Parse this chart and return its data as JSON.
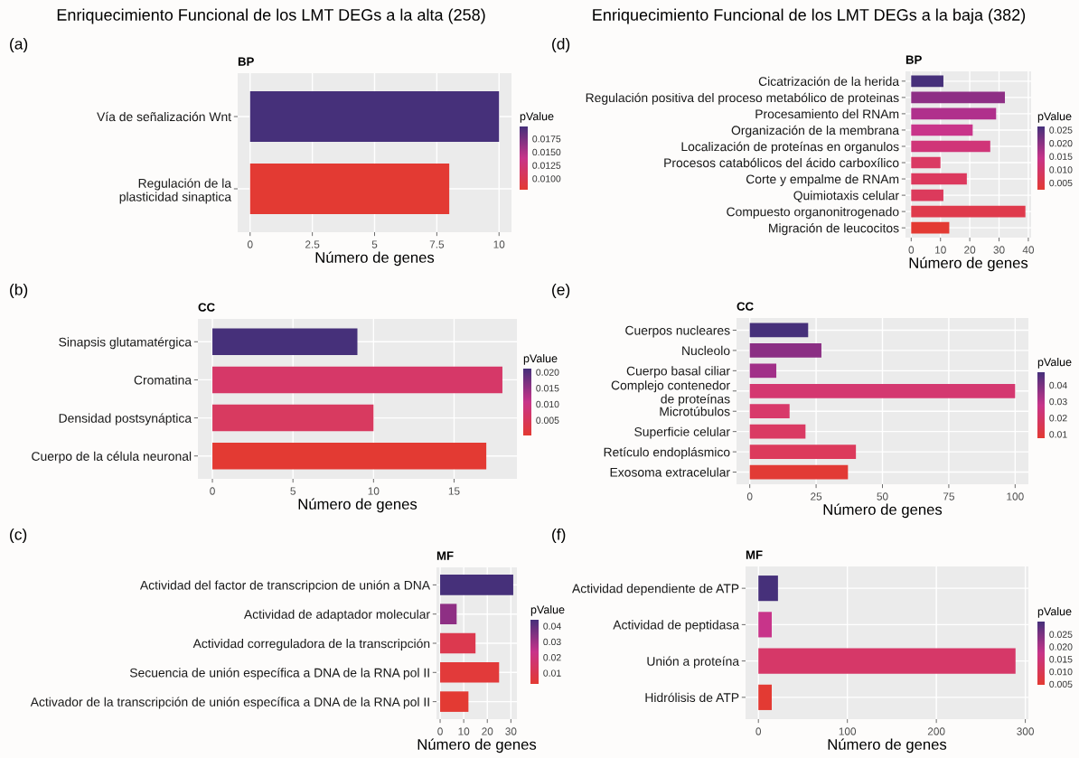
{
  "chart_data": [
    {
      "type": "bar",
      "orientation": "horizontal",
      "title": "BP",
      "annotations": [
        "Enriquecimiento Funcional de los LMT DEGs a la alta (258)",
        "(a)"
      ],
      "xlabel": "Número de genes",
      "categories": [
        "Vía de señalización Wnt",
        "Regulación de la\nplasticidad sinaptica"
      ],
      "values": [
        10,
        8
      ],
      "colors": [
        "#46307a",
        "#e33a33"
      ],
      "xlim": [
        -0.5,
        10.5
      ],
      "xticks": [
        0,
        2.5,
        5,
        7.5,
        10
      ],
      "grid": true,
      "clabel": "pValue",
      "clim": [
        0.0079,
        0.0198
      ],
      "cticks": [
        0.0175,
        {
          "value": 0.015,
          "label": "0.0150"
        },
        0.0125,
        {
          "value": 0.01,
          "label": "0.0100"
        }
      ]
    },
    {
      "type": "bar",
      "orientation": "horizontal",
      "title": "BP",
      "annotations": [
        "Enriquecimiento Funcional de los LMT DEGs a la baja (382)",
        "(d)"
      ],
      "xlabel": "Número de genes",
      "categories": [
        "Cicatrización de la herida",
        "Regulación positiva del proceso metabólico de proteinas",
        "Procesamiento del RNAm",
        "Organización de la membrana",
        "Localización de proteínas en organulos",
        "Procesos catabólicos del ácido carboxílico",
        "Corte y empalme de RNAm",
        "Quimiotaxis celular",
        "Compuesto organonitrogenado",
        "Migración de leucocitos"
      ],
      "values": [
        11,
        32,
        29,
        21,
        27,
        10,
        19,
        11,
        39,
        13
      ],
      "colors": [
        "#46307a",
        "#8e2f85",
        "#b0308c",
        "#c9348a",
        "#d03578",
        "#da3a63",
        "#dc395e",
        "#dc3a5c",
        "#df3a4c",
        "#e33a33"
      ],
      "xlim": [
        -1.95,
        40.95
      ],
      "xticks": [
        0,
        10,
        20,
        30,
        40
      ],
      "grid": true,
      "clabel": "pValue",
      "clim": [
        0.0024,
        0.0263
      ],
      "cticks": [
        0.025,
        {
          "value": 0.02,
          "label": "0.020"
        },
        0.015,
        {
          "value": 0.01,
          "label": "0.010"
        },
        0.005
      ]
    },
    {
      "type": "bar",
      "orientation": "horizontal",
      "title": "CC",
      "annotations": [
        "(b)"
      ],
      "xlabel": "Número de genes",
      "categories": [
        "Sinapsis glutamatérgica",
        "Cromatina",
        "Densidad postsynáptica",
        "Cuerpo de la célula neuronal"
      ],
      "values": [
        9,
        18,
        10,
        17
      ],
      "colors": [
        "#46307a",
        "#d63868",
        "#d83a60",
        "#e33a33"
      ],
      "xlim": [
        -0.9,
        18.9
      ],
      "xticks": [
        0,
        5,
        10,
        15
      ],
      "grid": true,
      "clabel": "pValue",
      "clim": [
        0.0002,
        0.0211
      ],
      "cticks": [
        {
          "value": 0.02,
          "label": "0.020"
        },
        0.015,
        {
          "value": 0.01,
          "label": "0.010"
        },
        0.005
      ]
    },
    {
      "type": "bar",
      "orientation": "horizontal",
      "title": "CC",
      "annotations": [
        "(e)"
      ],
      "xlabel": "Número de genes",
      "categories": [
        "Cuerpos nucleares",
        "Nucleolo",
        "Cuerpo basal ciliar",
        "Complejo contenedor\nde proteínas",
        "Microtúbulos",
        "Superficie celular",
        "Retículo endoplásmico",
        "Exosoma extracelular"
      ],
      "values": [
        22,
        27,
        10,
        100,
        15,
        21,
        40,
        37
      ],
      "colors": [
        "#46307a",
        "#8b2f84",
        "#a13088",
        "#d43870",
        "#d8396a",
        "#da3a63",
        "#dc3a5c",
        "#e23a36"
      ],
      "xlim": [
        -5,
        105
      ],
      "xticks": [
        0,
        25,
        50,
        75,
        100
      ],
      "grid": true,
      "clabel": "pValue",
      "clim": [
        0.0076,
        0.0479
      ],
      "cticks": [
        0.04,
        0.03,
        0.02,
        0.01
      ]
    },
    {
      "type": "bar",
      "orientation": "horizontal",
      "title": "MF",
      "annotations": [
        "(c)"
      ],
      "xlabel": "Número de genes",
      "categories": [
        "Actividad del factor de transcripcion de unión a DNA",
        "Actividad de adaptador molecular",
        "Actividad correguladora de la transcripción",
        "Secuencia de unión específica a DNA de la RNA pol II",
        "Activador de la transcripción de unión específica a DNA de la RNA pol II"
      ],
      "values": [
        31,
        7,
        15,
        25,
        12
      ],
      "colors": [
        "#46307a",
        "#8e2f84",
        "#dc394f",
        "#e23a3a",
        "#e33a33"
      ],
      "xlim": [
        -1.55,
        32.55
      ],
      "xticks": [
        0,
        10,
        20,
        30
      ],
      "grid": true,
      "clabel": "pValue",
      "clim": [
        0.003,
        0.044
      ],
      "cticks": [
        0.04,
        0.03,
        0.02,
        0.01
      ]
    },
    {
      "type": "bar",
      "orientation": "horizontal",
      "title": "MF",
      "annotations": [
        "(f)"
      ],
      "xlabel": "Número de genes",
      "categories": [
        "Actividad dependiente de ATP",
        "Actividad de peptidasa",
        "Unión a proteína",
        "Hidrólisis de ATP"
      ],
      "values": [
        22,
        15,
        289,
        15
      ],
      "colors": [
        "#46307a",
        "#c8348a",
        "#d63868",
        "#e33a33"
      ],
      "xlim": [
        -14.45,
        303.45
      ],
      "xticks": [
        0,
        100,
        200,
        300
      ],
      "grid": true,
      "clabel": "pValue",
      "clim": [
        0.0047,
        0.0301
      ],
      "cticks": [
        0.025,
        {
          "value": 0.02,
          "label": "0.020"
        },
        0.015,
        {
          "value": 0.01,
          "label": "0.010"
        },
        0.005
      ]
    }
  ]
}
